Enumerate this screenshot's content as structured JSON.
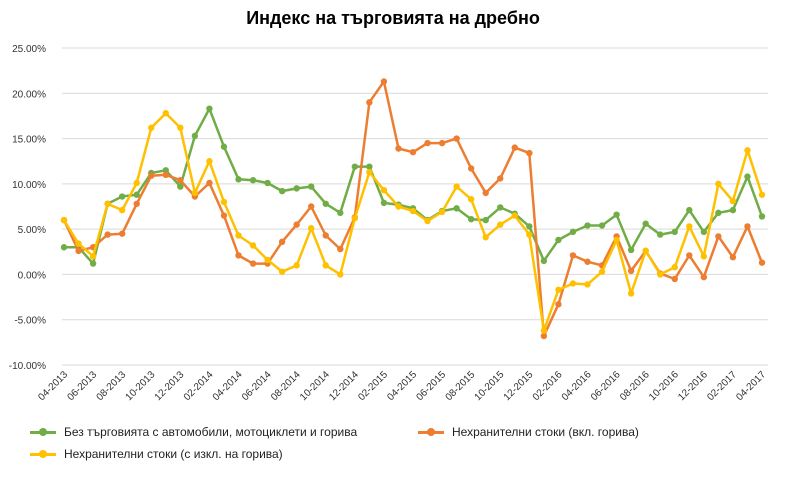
{
  "chart_data": {
    "type": "line",
    "title": "Индекс на търговията на дребно",
    "xlabel": "",
    "ylabel": "",
    "ylim": [
      -10,
      25
    ],
    "y_ticks": [
      "25.00%",
      "20.00%",
      "15.00%",
      "10.00%",
      "5.00%",
      "0.00%",
      "-5.00%",
      "-10.00%"
    ],
    "y_tick_values": [
      25,
      20,
      15,
      10,
      5,
      0,
      -5,
      -10
    ],
    "x_tick_labels": [
      "04-2013",
      "06-2013",
      "08-2013",
      "10-2013",
      "12-2013",
      "02-2014",
      "04-2014",
      "06-2014",
      "08-2014",
      "10-2014",
      "12-2014",
      "02-2015",
      "04-2015",
      "06-2015",
      "08-2015",
      "10-2015",
      "12-2015",
      "02-2016",
      "04-2016",
      "06-2016",
      "08-2016",
      "10-2016",
      "12-2016",
      "02-2017",
      "04-2017"
    ],
    "grid": true,
    "legend_position": "bottom",
    "series": [
      {
        "name": "Без търговията с автомобили, мотоциклети и горива",
        "color": "#70ad47",
        "values": [
          3.0,
          3.0,
          1.2,
          7.8,
          8.6,
          8.8,
          11.2,
          11.5,
          9.7,
          15.3,
          18.3,
          14.1,
          10.5,
          10.4,
          10.1,
          9.2,
          9.5,
          9.7,
          7.8,
          6.8,
          11.9,
          11.9,
          7.9,
          7.7,
          7.3,
          6.0,
          7.0,
          7.3,
          6.1,
          6.0,
          7.4,
          6.7,
          5.3,
          1.5,
          3.8,
          4.7,
          5.4,
          5.4,
          6.6,
          2.7,
          5.6,
          4.4,
          4.7,
          7.1,
          4.7,
          6.8,
          7.1,
          10.8,
          6.4
        ]
      },
      {
        "name": "Нехранителни стоки (вкл. горива)",
        "color": "#ed7d31",
        "values": [
          6.0,
          2.6,
          3.0,
          4.4,
          4.5,
          7.8,
          10.9,
          11.0,
          10.4,
          8.6,
          10.1,
          6.5,
          2.1,
          1.2,
          1.2,
          3.6,
          5.5,
          7.5,
          4.3,
          2.8,
          6.3,
          19.0,
          21.3,
          13.9,
          13.5,
          14.5,
          14.5,
          15.0,
          11.7,
          9.0,
          10.6,
          14.0,
          13.4,
          -6.8,
          -3.3,
          2.1,
          1.4,
          1.0,
          4.2,
          0.4,
          2.6,
          0.1,
          -0.5,
          2.1,
          -0.3,
          4.2,
          1.9,
          5.3,
          1.3
        ]
      },
      {
        "name": "Нехранителни стоки (с изкл. на горива)",
        "color": "#ffc000",
        "values": [
          6.0,
          3.4,
          2.0,
          7.8,
          7.1,
          10.1,
          16.2,
          17.8,
          16.2,
          9.0,
          12.5,
          8.0,
          4.3,
          3.2,
          1.6,
          0.3,
          1.0,
          5.1,
          1.0,
          0.0,
          6.2,
          11.3,
          9.3,
          7.5,
          7.0,
          5.9,
          6.9,
          9.7,
          8.3,
          4.1,
          5.5,
          6.5,
          4.4,
          -6.2,
          -1.7,
          -1.0,
          -1.1,
          0.3,
          3.8,
          -2.1,
          2.6,
          0.0,
          0.8,
          5.3,
          2.0,
          10.0,
          8.1,
          13.7,
          8.8
        ]
      }
    ]
  }
}
